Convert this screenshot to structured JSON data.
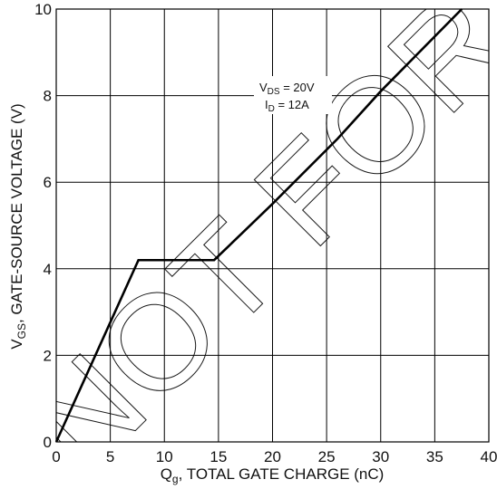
{
  "chart_data": {
    "type": "line",
    "xlabel_main": "Q",
    "xlabel_sub": "g",
    "xlabel_rest": ", TOTAL GATE CHARGE (nC)",
    "ylabel_main": "V",
    "ylabel_sub": "GS",
    "ylabel_rest": ", GATE-SOURCE VOLTAGE (V)",
    "xlim": [
      0,
      40
    ],
    "ylim": [
      0,
      10
    ],
    "x_ticks": [
      0,
      5,
      10,
      15,
      20,
      25,
      30,
      35,
      40
    ],
    "y_ticks": [
      0,
      2,
      4,
      6,
      8,
      10
    ],
    "grid": true,
    "annotation": {
      "line1_main": "V",
      "line1_sub": "DS",
      "line1_rest": " = 20V",
      "line2_main": "I",
      "line2_sub": "D",
      "line2_rest": " = 12A"
    },
    "series": [
      {
        "x": [
          0,
          7.6,
          14.6,
          20,
          26,
          30,
          37.5
        ],
        "y": [
          0,
          4.2,
          4.2,
          5.5,
          7.0,
          8.1,
          10
        ]
      }
    ]
  },
  "watermark": {
    "text": "NOT FOR NEW"
  },
  "colors": {
    "line": "#000000",
    "grid": "#000000",
    "background": "#ffffff"
  }
}
